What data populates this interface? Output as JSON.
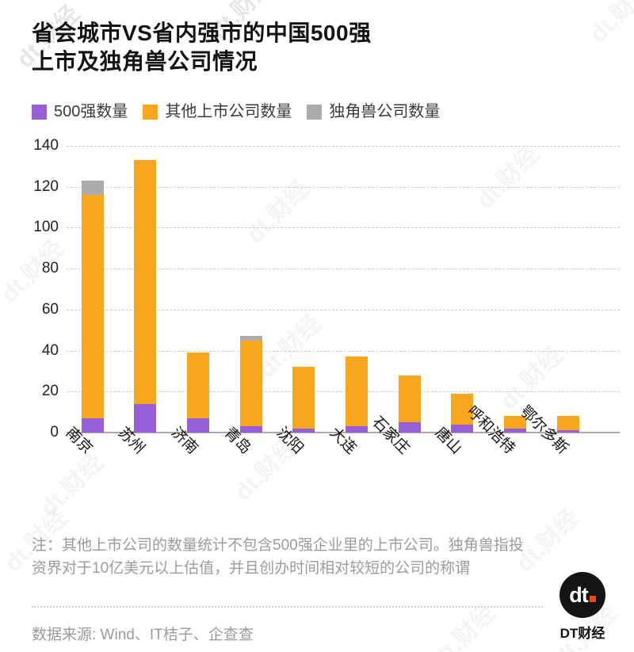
{
  "meta": {
    "watermark": "dt.财经"
  },
  "title": {
    "line1": "省会城市VS省内强市的中国500强",
    "line2": "上市及独角兽公司情况"
  },
  "legend": [
    {
      "label": "500强数量",
      "color": "#975FD6"
    },
    {
      "label": "其他上市公司数量",
      "color": "#F7A61D"
    },
    {
      "label": "独角兽公司数量",
      "color": "#ABABAB"
    }
  ],
  "chart_data": {
    "type": "bar",
    "stacked": true,
    "title": "省会城市VS省内强市的中国500强上市及独角兽公司情况",
    "xlabel": "",
    "ylabel": "",
    "ylim": [
      0,
      140
    ],
    "yticks": [
      0,
      20,
      40,
      60,
      80,
      100,
      120,
      140
    ],
    "grid": "horizontal-dashed",
    "legend_position": "top",
    "categories": [
      "南京",
      "苏州",
      "济南",
      "青岛",
      "沈阳",
      "大连",
      "石家庄",
      "唐山",
      "呼和浩特",
      "鄂尔多斯"
    ],
    "series": [
      {
        "name": "500强数量",
        "color": "#975FD6",
        "values": [
          7,
          14,
          7,
          3,
          2,
          3,
          5,
          4,
          2,
          1
        ]
      },
      {
        "name": "其他上市公司数量",
        "color": "#F7A61D",
        "values": [
          109,
          119,
          32,
          42,
          30,
          34,
          23,
          15,
          6,
          7
        ]
      },
      {
        "name": "独角兽公司数量",
        "color": "#ABABAB",
        "values": [
          7,
          0,
          0,
          2,
          0,
          0,
          0,
          0,
          0,
          0
        ]
      }
    ],
    "stack_totals": [
      123,
      133,
      39,
      47,
      32,
      37,
      28,
      19,
      8,
      8
    ]
  },
  "note": {
    "text": "注：其他上市公司的数量统计不包含500强企业里的上市公司。独角兽指投资界对于10亿美元以上估值，并且创办时间相对较短的公司的称谓"
  },
  "source": {
    "text": "数据来源: Wind、IT桔子、企查查"
  },
  "logo": {
    "mark": "dt",
    "name": "DT财经",
    "dot_color": "#e8491e"
  }
}
